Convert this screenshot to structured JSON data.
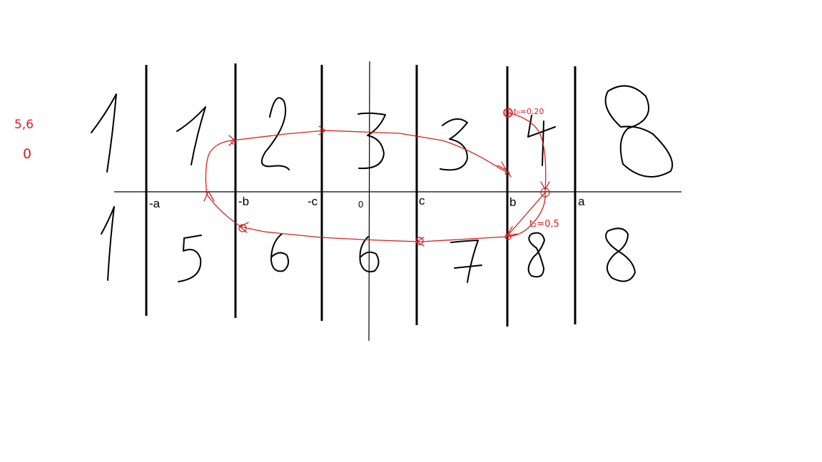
{
  "colors": {
    "ink": "#000000",
    "annotation": "#d62020",
    "background": "#ffffff"
  },
  "axis": {
    "tick_labels": [
      "-a",
      "-b",
      "-c",
      "0",
      "c",
      "b",
      "a"
    ]
  },
  "regions": {
    "top_row": [
      "1",
      "1",
      "2",
      "3",
      "3",
      "4",
      "8"
    ],
    "bottom_row": [
      "1",
      "5",
      "6",
      "6",
      "7",
      "8",
      "8"
    ]
  },
  "annotations": {
    "t0_label": "t₀=0,20",
    "t2_label": "t₂=0,5",
    "side_note": [
      "5,6",
      "0"
    ]
  }
}
